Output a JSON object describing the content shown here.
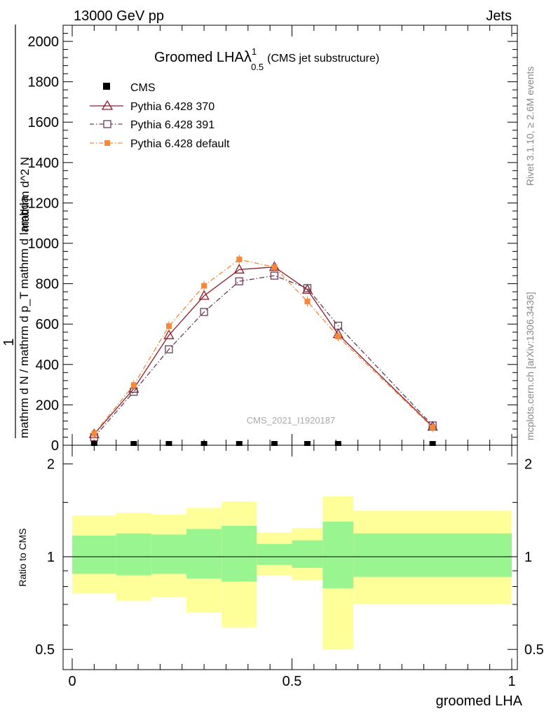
{
  "header": {
    "left": "13000 GeV pp",
    "right": "Jets"
  },
  "chart_data": {
    "type": "line",
    "title_main": "Groomed LHA",
    "title_lambda": "λ",
    "title_sup": "1",
    "title_sub": "0.5",
    "title_extra": "(CMS jet substructure)",
    "xlabel": "groomed LHA",
    "ylabel_numerator": "1",
    "ylabel_line1": "mathrm d N / mathrm d p_T mathrm d lambda",
    "ylabel_line2": "mathrm d^2 N",
    "xlim": [
      0,
      1
    ],
    "ylim": [
      0,
      2080
    ],
    "x_ticks": [
      0,
      0.5,
      1
    ],
    "x_tick_labels": [
      "0",
      "0.5",
      "1"
    ],
    "y_ticks": [
      0,
      200,
      400,
      600,
      800,
      1000,
      1200,
      1400,
      1600,
      1800,
      2000
    ],
    "y_tick_labels": [
      "0",
      "200",
      "400",
      "600",
      "800",
      "1000",
      "1200",
      "1400",
      "1600",
      "1800",
      "2000"
    ],
    "watermark": "CMS_2021_I1920187",
    "right_side_text_top": "Rivet 3.1.10, ≥ 2.6M events",
    "right_side_text_bottom": "mcplots.cern.ch [arXiv:1306.3436]",
    "series": [
      {
        "name": "CMS",
        "style": "data",
        "color": "#000000",
        "x": [
          0.05,
          0.14,
          0.22,
          0.3,
          0.38,
          0.46,
          0.535,
          0.605,
          0.82
        ],
        "values": [
          0,
          0,
          0,
          0,
          0,
          0,
          0,
          0,
          0
        ]
      },
      {
        "name": "Pythia 6.428 370",
        "style": "solid",
        "marker": "triangle",
        "color": "#8b1a2a",
        "x": [
          0.05,
          0.14,
          0.22,
          0.3,
          0.38,
          0.46,
          0.535,
          0.605,
          0.82
        ],
        "values": [
          55,
          280,
          545,
          740,
          870,
          883,
          770,
          550,
          92
        ]
      },
      {
        "name": "Pythia 6.428 391",
        "style": "dashdot",
        "marker": "square-open",
        "color": "#6b3a55",
        "x": [
          0.05,
          0.14,
          0.22,
          0.3,
          0.38,
          0.46,
          0.535,
          0.605,
          0.82
        ],
        "values": [
          40,
          265,
          475,
          660,
          812,
          840,
          778,
          592,
          98
        ]
      },
      {
        "name": "Pythia 6.428 default",
        "style": "dashdot",
        "marker": "square-filled",
        "color": "#f5883a",
        "x": [
          0.05,
          0.14,
          0.22,
          0.3,
          0.38,
          0.46,
          0.535,
          0.605,
          0.82
        ],
        "values": [
          58,
          298,
          590,
          790,
          920,
          882,
          712,
          538,
          88
        ]
      }
    ],
    "ratio": {
      "ylabel": "Ratio to CMS",
      "ylim": [
        0.43,
        2.3
      ],
      "y_ticks": [
        0.5,
        1,
        2
      ],
      "y_tick_labels": [
        "0.5",
        "1",
        "2"
      ],
      "bins": [
        {
          "lo": 0.0,
          "hi": 0.1,
          "inner": [
            0.88,
            1.17
          ],
          "outer": [
            0.76,
            1.36
          ]
        },
        {
          "lo": 0.1,
          "hi": 0.18,
          "inner": [
            0.87,
            1.19
          ],
          "outer": [
            0.72,
            1.39
          ]
        },
        {
          "lo": 0.18,
          "hi": 0.26,
          "inner": [
            0.88,
            1.18
          ],
          "outer": [
            0.74,
            1.37
          ]
        },
        {
          "lo": 0.26,
          "hi": 0.34,
          "inner": [
            0.85,
            1.23
          ],
          "outer": [
            0.66,
            1.44
          ]
        },
        {
          "lo": 0.34,
          "hi": 0.42,
          "inner": [
            0.83,
            1.26
          ],
          "outer": [
            0.59,
            1.51
          ]
        },
        {
          "lo": 0.42,
          "hi": 0.5,
          "inner": [
            0.94,
            1.1
          ],
          "outer": [
            0.87,
            1.2
          ]
        },
        {
          "lo": 0.5,
          "hi": 0.57,
          "inner": [
            0.92,
            1.13
          ],
          "outer": [
            0.84,
            1.24
          ]
        },
        {
          "lo": 0.57,
          "hi": 0.64,
          "inner": [
            0.79,
            1.3
          ],
          "outer": [
            0.5,
            1.57
          ]
        },
        {
          "lo": 0.64,
          "hi": 1.0,
          "inner": [
            0.86,
            1.19
          ],
          "outer": [
            0.7,
            1.41
          ]
        }
      ]
    }
  }
}
